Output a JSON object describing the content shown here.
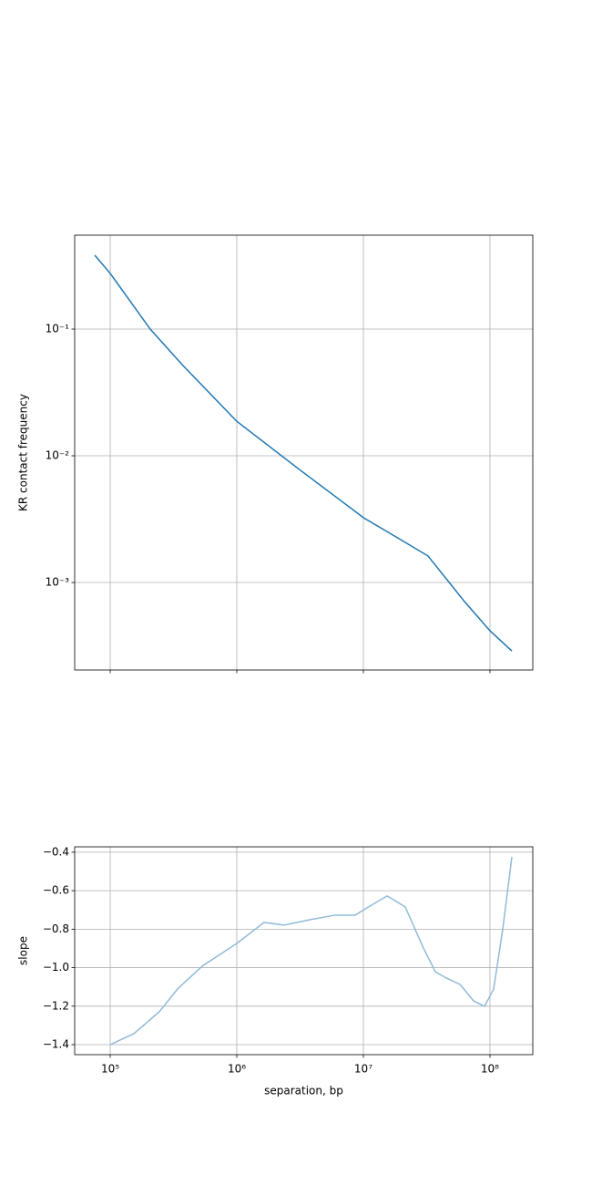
{
  "chart_data": [
    {
      "type": "line",
      "ylabel": "KR contact frequency",
      "xlog": true,
      "ylog": true,
      "grid": true,
      "xticklabels": false,
      "color": "#1f77b4",
      "xlim": [
        52400,
        218000000
      ],
      "ylim": [
        0.000204,
        0.551
      ],
      "xticks": [
        {
          "value": 100000,
          "label": "10⁵"
        },
        {
          "value": 1000000,
          "label": "10⁶"
        },
        {
          "value": 10000000,
          "label": "10⁷"
        },
        {
          "value": 100000000,
          "label": "10⁸"
        }
      ],
      "yticks": [
        {
          "value": 0.001,
          "label": "10⁻³"
        },
        {
          "value": 0.01,
          "label": "10⁻²"
        },
        {
          "value": 0.1,
          "label": "10⁻¹"
        }
      ],
      "x": [
        75500,
        100000,
        130000,
        207000,
        370000,
        1000000,
        3190000,
        10000000,
        19700000,
        32400000,
        63000000,
        100000000,
        149000000
      ],
      "values": [
        0.383,
        0.275,
        0.191,
        0.1,
        0.0524,
        0.0187,
        0.00767,
        0.00325,
        0.00218,
        0.00162,
        0.000706,
        0.000416,
        0.000288
      ]
    },
    {
      "type": "line",
      "xlabel": "separation, bp",
      "ylabel": "slope",
      "xlog": true,
      "ylog": false,
      "grid": true,
      "xticklabels": true,
      "color": "#8fbbd9",
      "xlim": [
        52400,
        218000000
      ],
      "ylim": [
        -1.452,
        -0.372
      ],
      "xticks": [
        {
          "value": 100000,
          "label": "10⁵"
        },
        {
          "value": 1000000,
          "label": "10⁶"
        },
        {
          "value": 10000000,
          "label": "10⁷"
        },
        {
          "value": 100000000,
          "label": "10⁸"
        }
      ],
      "yticks": [
        {
          "value": -1.4,
          "label": "−1.4"
        },
        {
          "value": -1.2,
          "label": "−1.2"
        },
        {
          "value": -1.0,
          "label": "−1.0"
        },
        {
          "value": -0.8,
          "label": "−0.8"
        },
        {
          "value": -0.6,
          "label": "−0.6"
        },
        {
          "value": -0.4,
          "label": "−0.4"
        }
      ],
      "x": [
        100000,
        154000,
        244000,
        340000,
        533000,
        1000000,
        1640000,
        2370000,
        3770000,
        5990000,
        8610000,
        11000000,
        15400000,
        21400000,
        29800000,
        37000000,
        45200000,
        58000000,
        74300000,
        90600000,
        107000000,
        126000000,
        149000000
      ],
      "values": [
        -1.4,
        -1.343,
        -1.229,
        -1.111,
        -0.992,
        -0.874,
        -0.765,
        -0.779,
        -0.751,
        -0.727,
        -0.727,
        -0.684,
        -0.627,
        -0.684,
        -0.898,
        -1.021,
        -1.054,
        -1.087,
        -1.173,
        -1.201,
        -1.111,
        -0.803,
        -0.424
      ]
    }
  ]
}
